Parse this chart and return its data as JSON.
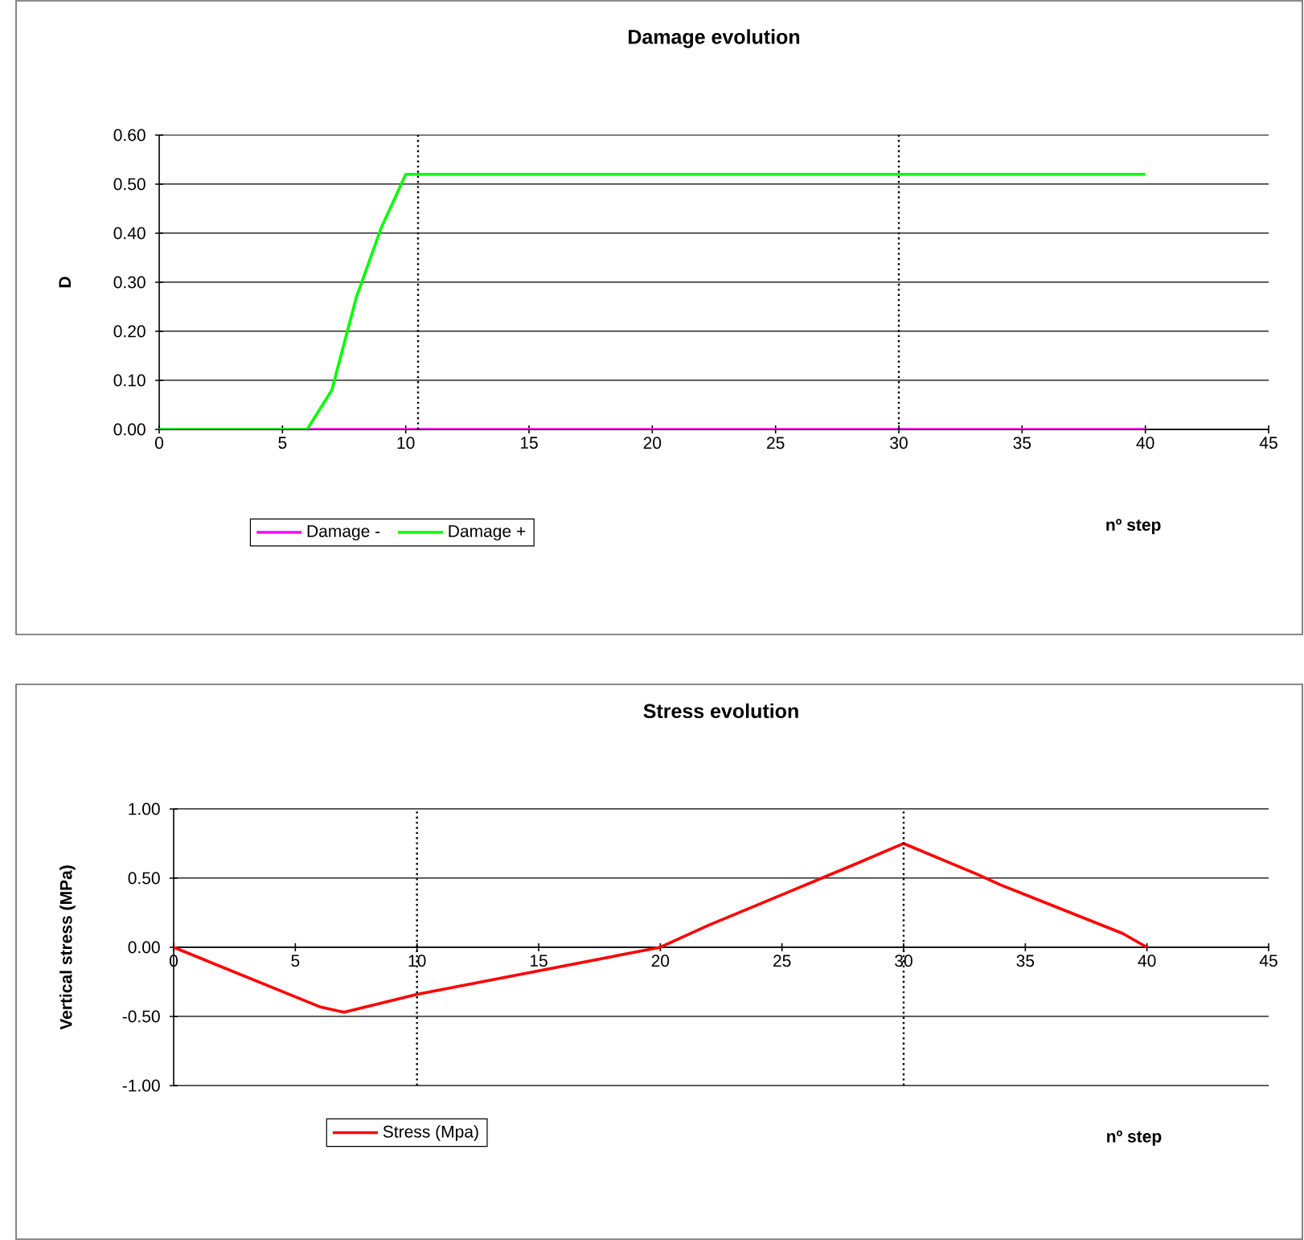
{
  "chart_data": [
    {
      "type": "line",
      "title": "Damage evolution",
      "xlabel": "nº step",
      "ylabel": "D",
      "xlim": [
        0,
        45
      ],
      "xticks": [
        0,
        5,
        10,
        15,
        20,
        25,
        30,
        35,
        40,
        45
      ],
      "ylim": [
        0,
        0.6
      ],
      "yticks": [
        {
          "value": 0,
          "label": "0.00"
        },
        {
          "value": 0.1,
          "label": "0.10"
        },
        {
          "value": 0.2,
          "label": "0.20"
        },
        {
          "value": 0.3,
          "label": "0.30"
        },
        {
          "value": 0.4,
          "label": "0.40"
        },
        {
          "value": 0.5,
          "label": "0.50"
        },
        {
          "value": 0.6,
          "label": "0.60"
        }
      ],
      "grid": "y",
      "legend": "bottom",
      "marker": "none",
      "series": [
        {
          "name": "Damage -",
          "color": "#ff00ff",
          "x": [
            0,
            40
          ],
          "values": [
            0,
            0
          ]
        },
        {
          "name": "Damage +",
          "color": "#00ff00",
          "x": [
            0,
            6,
            7,
            8,
            9,
            10,
            40
          ],
          "values": [
            0,
            0,
            0.08,
            0.27,
            0.41,
            0.52,
            0.52
          ]
        }
      ],
      "ref_lines": [
        {
          "axis": "x",
          "value": 10.5,
          "color": "#000000",
          "line_style": "dotted"
        },
        {
          "axis": "x",
          "value": 30,
          "color": "#000000",
          "line_style": "dotted"
        }
      ]
    },
    {
      "type": "line",
      "title": "Stress evolution",
      "xlabel": "nº step",
      "ylabel": "Vertical stress (MPa)",
      "xlim": [
        0,
        45
      ],
      "xticks": [
        0,
        5,
        10,
        15,
        20,
        25,
        30,
        35,
        40,
        45
      ],
      "ylim": [
        -1,
        1
      ],
      "yticks": [
        {
          "value": -1,
          "label": "-1.00"
        },
        {
          "value": -0.5,
          "label": "-0.50"
        },
        {
          "value": 0,
          "label": "0.00"
        },
        {
          "value": 0.5,
          "label": "0.50"
        },
        {
          "value": 1,
          "label": "1.00"
        }
      ],
      "grid": "y",
      "legend": "bottom",
      "marker": "none",
      "series": [
        {
          "name": "Stress (Mpa)",
          "color": "#ff0000",
          "x": [
            0,
            6,
            7,
            10,
            20,
            22,
            25,
            28,
            30,
            33,
            34,
            39,
            40
          ],
          "values": [
            0,
            -0.43,
            -0.47,
            -0.34,
            0,
            0.16,
            0.38,
            0.6,
            0.75,
            0.53,
            0.45,
            0.1,
            0
          ]
        }
      ],
      "ref_lines": [
        {
          "axis": "x",
          "value": 10,
          "color": "#000000",
          "line_style": "dotted"
        },
        {
          "axis": "x",
          "value": 30,
          "color": "#000000",
          "line_style": "dotted"
        }
      ]
    }
  ]
}
